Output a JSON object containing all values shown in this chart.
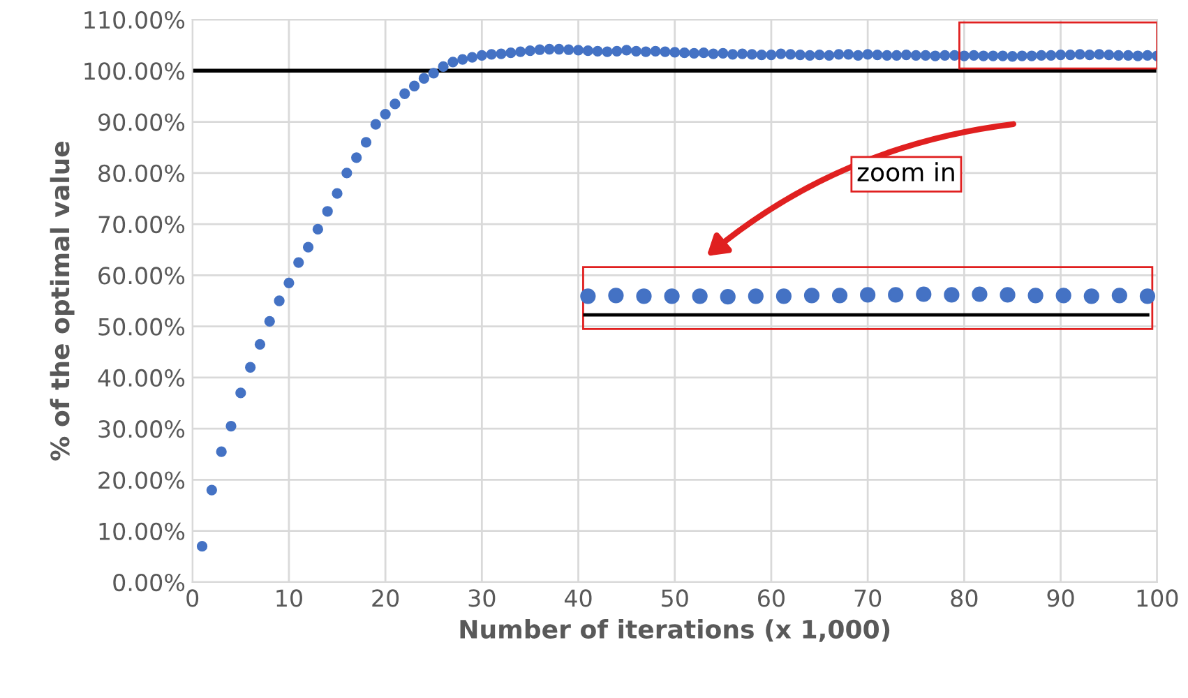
{
  "chart_data": {
    "type": "scatter",
    "xlabel": "Number of iterations (x 1,000)",
    "ylabel": "% of the optimal value",
    "x": [
      1,
      2,
      3,
      4,
      5,
      6,
      7,
      8,
      9,
      10,
      11,
      12,
      13,
      14,
      15,
      16,
      17,
      18,
      19,
      20,
      21,
      22,
      23,
      24,
      25,
      26,
      27,
      28,
      29,
      30,
      31,
      32,
      33,
      34,
      35,
      36,
      37,
      38,
      39,
      40,
      41,
      42,
      43,
      44,
      45,
      46,
      47,
      48,
      49,
      50,
      51,
      52,
      53,
      54,
      55,
      56,
      57,
      58,
      59,
      60,
      61,
      62,
      63,
      64,
      65,
      66,
      67,
      68,
      69,
      70,
      71,
      72,
      73,
      74,
      75,
      76,
      77,
      78,
      79,
      80,
      81,
      82,
      83,
      84,
      85,
      86,
      87,
      88,
      89,
      90,
      91,
      92,
      93,
      94,
      95,
      96,
      97,
      98,
      99,
      100
    ],
    "series": [
      {
        "color": "#4472c4",
        "values": [
          7,
          18,
          25.5,
          30.5,
          37,
          42,
          46.5,
          51,
          55,
          58.5,
          62.5,
          65.5,
          69,
          72.5,
          76,
          80,
          83,
          86,
          89.5,
          91.5,
          93.5,
          95.5,
          97,
          98.5,
          99.5,
          100.8,
          101.7,
          102.2,
          102.6,
          103,
          103.2,
          103.3,
          103.5,
          103.7,
          103.9,
          104.1,
          104.2,
          104.2,
          104.1,
          104,
          103.9,
          103.8,
          103.7,
          103.8,
          104,
          103.8,
          103.7,
          103.8,
          103.7,
          103.6,
          103.5,
          103.4,
          103.5,
          103.3,
          103.4,
          103.2,
          103.3,
          103.2,
          103.1,
          103.1,
          103.3,
          103.2,
          103.1,
          103,
          103.1,
          103,
          103.2,
          103.2,
          103,
          103.2,
          103.1,
          103,
          103,
          103.1,
          103,
          103,
          102.9,
          103,
          103,
          102.9,
          103,
          102.9,
          102.9,
          102.9,
          102.8,
          102.9,
          102.9,
          103,
          103,
          103.1,
          103.1,
          103.2,
          103.1,
          103.2,
          103.1,
          103,
          103,
          102.9,
          103,
          102.9
        ]
      }
    ],
    "marker": "circle",
    "xlim": [
      0,
      100
    ],
    "xticks": [
      0,
      10,
      20,
      30,
      40,
      50,
      60,
      70,
      80,
      90,
      100
    ],
    "ylim": [
      0,
      110
    ],
    "yticks": [
      {
        "value": 0,
        "label": "0.00%"
      },
      {
        "value": 10,
        "label": "10.00%"
      },
      {
        "value": 20,
        "label": "20.00%"
      },
      {
        "value": 30,
        "label": "30.00%"
      },
      {
        "value": 40,
        "label": "40.00%"
      },
      {
        "value": 50,
        "label": "50.00%"
      },
      {
        "value": 60,
        "label": "60.00%"
      },
      {
        "value": 70,
        "label": "70.00%"
      },
      {
        "value": 80,
        "label": "80.00%"
      },
      {
        "value": 90,
        "label": "90.00%"
      },
      {
        "value": 100,
        "label": "100.00%"
      },
      {
        "value": 110,
        "label": "110.00%"
      }
    ],
    "grid": true,
    "ref_lines": [
      {
        "axis": "y",
        "value": 100,
        "color": "#000000"
      }
    ],
    "annotations": [
      "zoom in"
    ]
  }
}
